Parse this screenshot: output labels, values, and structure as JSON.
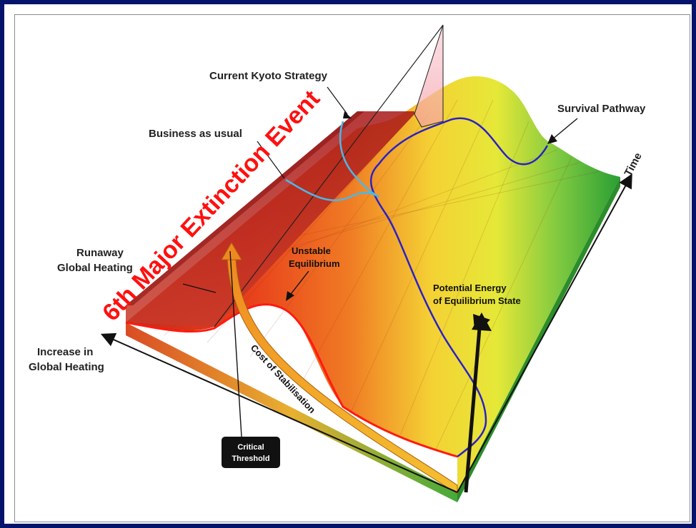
{
  "labels": {
    "current_kyoto": "Current Kyoto Strategy",
    "business_as_usual": "Business as usual",
    "survival_pathway": "Survival Pathway",
    "time": "Time",
    "runaway_1": "Runaway",
    "runaway_2": "Global Heating",
    "unstable_1": "Unstable",
    "unstable_2": "Equilibrium",
    "potential_1": "Potential Energy",
    "potential_2": "of Equilibrium State",
    "increase_1": "Increase in",
    "increase_2": "Global Heating",
    "cost": "Cost of Stabilisation",
    "critical_1": "Critical",
    "critical_2": "Threshold",
    "extinction": "6th Major Extinction Event"
  },
  "colors": {
    "frame": "#05146b",
    "extinction_red": "#ff1010",
    "survival_blue": "#2a20c8",
    "kyoto_cyan": "#4ab8e8",
    "surface_red": "#d42a18",
    "surface_yellow": "#f4e030",
    "surface_green": "#2aa838",
    "arrow_orange": "#f0a020"
  }
}
